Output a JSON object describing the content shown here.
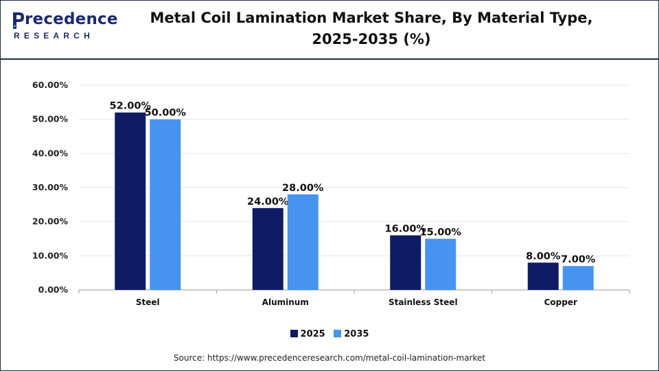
{
  "header": {
    "logo_word": "recedence",
    "logo_sub": "RESEARCH",
    "title_line1": "Metal Coil Lamination Market Share, By Material Type,",
    "title_line2": "2025-2035 (%)"
  },
  "colors": {
    "series_2025": "#0f1c63",
    "series_2035": "#4793f0",
    "axis": "#9a9a9a",
    "grid": "#e6e6e6",
    "brand": "#1b2a6b"
  },
  "source": "Source: https://www.precedenceresearch.com/metal-coil-lamination-market",
  "chart_data": {
    "type": "bar",
    "title": "Metal Coil Lamination Market Share, By Material Type, 2025-2035 (%)",
    "xlabel": "",
    "ylabel": "",
    "categories": [
      "Steel",
      "Aluminum",
      "Stainless Steel",
      "Copper"
    ],
    "series": [
      {
        "name": "2025",
        "values": [
          52,
          24,
          16,
          8
        ],
        "labels": [
          "52.00%",
          "24.00%",
          "16.00%",
          "8.00%"
        ]
      },
      {
        "name": "2035",
        "values": [
          50,
          28,
          15,
          7
        ],
        "labels": [
          "50.00%",
          "28.00%",
          "15.00%",
          "7.00%"
        ]
      }
    ],
    "yticks": [
      "0.00%",
      "10.00%",
      "20.00%",
      "30.00%",
      "40.00%",
      "50.00%",
      "60.00%"
    ],
    "ylim": [
      0,
      60
    ],
    "grid": true,
    "legend": "bottom-center"
  }
}
